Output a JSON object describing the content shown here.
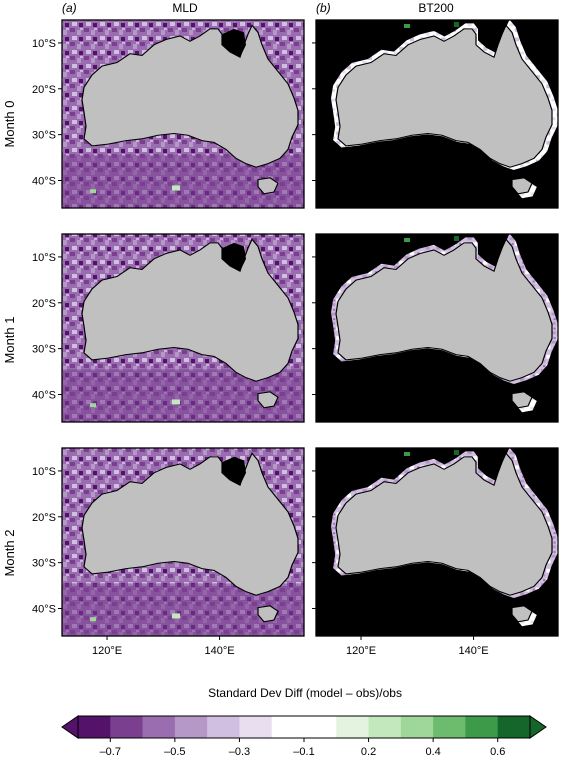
{
  "panels": {
    "a_letter": "(a)",
    "a_title": "MLD",
    "b_letter": "(b)",
    "b_title": "BT200"
  },
  "rows": [
    "Month 0",
    "Month 1",
    "Month 2"
  ],
  "lat_labels": [
    "10°S",
    "20°S",
    "30°S",
    "40°S"
  ],
  "lon_labels": [
    "120°E",
    "140°E"
  ],
  "colorbar": {
    "title": "Standard Dev Diff (model – obs)/obs",
    "tick_labels": [
      "–0.7",
      "–0.5",
      "–0.3",
      "–0.1",
      "0.2",
      "0.4",
      "0.6"
    ],
    "colors": [
      "#54126b",
      "#7a3f8f",
      "#9a6cb0",
      "#b598c8",
      "#d0bfe0",
      "#e8def0",
      "#ffffff",
      "#e3f3df",
      "#c4e8bd",
      "#9fd79a",
      "#6dbb6c",
      "#3c9a48",
      "#14662b"
    ]
  },
  "colors": {
    "land": "#c0c0c0",
    "masked": "#000000",
    "mld_base": "#9a6cb0",
    "bt200_base": "#000000"
  },
  "chart_data": {
    "type": "heatmap",
    "description_values": "Gridded maps around Australia, lon ~112–155°E, lat ~5–45°S",
    "xlim": [
      112,
      155
    ],
    "ylim": [
      -46,
      -5
    ],
    "xticks": [
      120,
      140
    ],
    "yticks": [
      -10,
      -20,
      -30,
      -40
    ],
    "panels": [
      {
        "column": "MLD",
        "row": "Month 0",
        "dominant_value": -0.4
      },
      {
        "column": "BT200",
        "row": "Month 0",
        "dominant_value": -0.2
      },
      {
        "column": "MLD",
        "row": "Month 1",
        "dominant_value": -0.45
      },
      {
        "column": "BT200",
        "row": "Month 1",
        "dominant_value": -0.3
      },
      {
        "column": "MLD",
        "row": "Month 2",
        "dominant_value": -0.45
      },
      {
        "column": "BT200",
        "row": "Month 2",
        "dominant_value": -0.3
      }
    ],
    "colorbar_range": [
      -0.8,
      0.8
    ],
    "colorbar_boundaries": [
      -0.8,
      -0.7,
      -0.6,
      -0.5,
      -0.4,
      -0.3,
      -0.2,
      -0.1,
      0.1,
      0.2,
      0.3,
      0.4,
      0.5,
      0.6,
      0.8
    ]
  }
}
